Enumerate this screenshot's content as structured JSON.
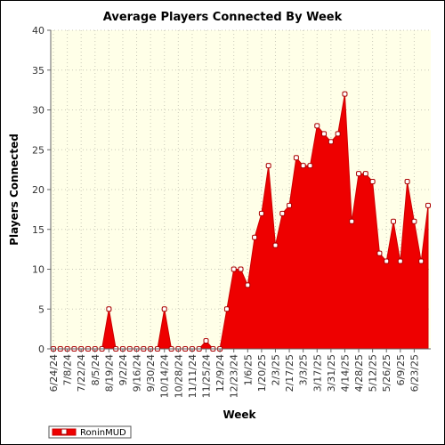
{
  "colors": {
    "plot_background": "#ffffe8",
    "area_fill": "#ee0000",
    "area_stroke": "#cc0000",
    "grid": "#c8c8b8",
    "marker_fill": "#ffffff",
    "marker_stroke": "#aa0000"
  },
  "chart_data": {
    "type": "area",
    "title": "Average Players Connected By Week",
    "xlabel": "Week",
    "ylabel": "Players Connected",
    "ylim": [
      0,
      40
    ],
    "yticks": [
      0,
      5,
      10,
      15,
      20,
      25,
      30,
      35,
      40
    ],
    "grid": true,
    "legend_position": "bottom-left",
    "xtick_labels": [
      "6/24/24",
      "7/8/24",
      "7/22/24",
      "8/5/24",
      "8/19/24",
      "9/2/24",
      "9/16/24",
      "9/30/24",
      "10/14/24",
      "10/28/24",
      "11/11/24",
      "11/25/24",
      "12/9/24",
      "12/23/24",
      "1/6/25",
      "1/20/25",
      "2/3/25",
      "2/17/25",
      "3/3/25",
      "3/17/25",
      "3/31/25",
      "4/14/25",
      "4/28/25",
      "5/12/25",
      "5/26/25",
      "6/9/25",
      "6/23/25"
    ],
    "series": [
      {
        "name": "RoninMUD",
        "values": [
          0,
          0,
          0,
          0,
          0,
          0,
          0,
          0,
          5,
          0,
          0,
          0,
          0,
          0,
          0,
          0,
          5,
          0,
          0,
          0,
          0,
          0,
          1,
          0,
          0,
          5,
          10,
          10,
          8,
          14,
          17,
          23,
          13,
          17,
          18,
          24,
          23,
          23,
          28,
          27,
          26,
          27,
          32,
          16,
          22,
          22,
          21,
          12,
          11,
          16,
          11,
          21,
          16,
          11,
          18
        ]
      }
    ]
  }
}
